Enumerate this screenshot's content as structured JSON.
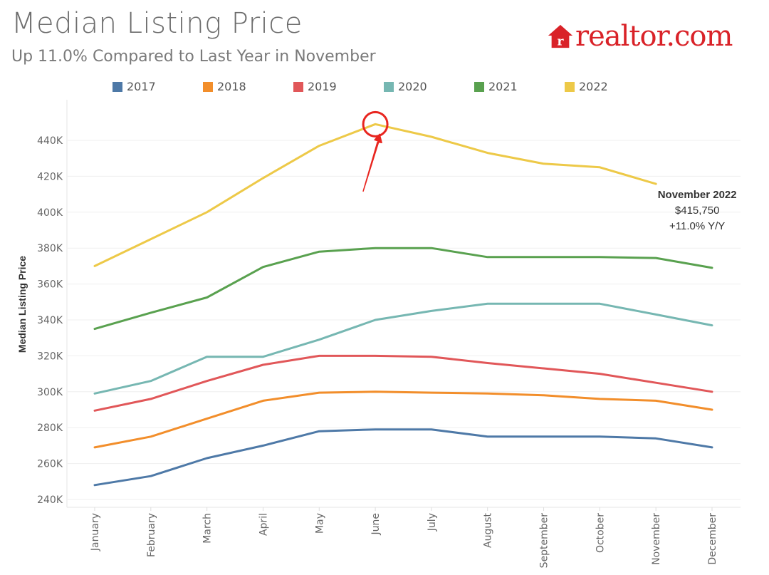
{
  "header": {
    "title": "Median Listing Price",
    "subtitle": "Up 11.0% Compared to Last Year in November",
    "brand": "realtor.com",
    "brand_color": "#d92228"
  },
  "chart_data": {
    "type": "line",
    "title": "Median Listing Price",
    "subtitle": "Up 11.0% Compared to Last Year in November",
    "ylabel": "Median Listing Price",
    "xlabel": "",
    "ylim": [
      238000,
      455000
    ],
    "yticks": [
      240000,
      260000,
      280000,
      300000,
      320000,
      340000,
      360000,
      380000,
      400000,
      420000,
      440000
    ],
    "ytick_labels": [
      "240K",
      "260K",
      "280K",
      "300K",
      "320K",
      "340K",
      "360K",
      "380K",
      "400K",
      "420K",
      "440K"
    ],
    "grid": true,
    "legend_position": "top",
    "categories": [
      "January",
      "February",
      "March",
      "April",
      "May",
      "June",
      "July",
      "August",
      "September",
      "October",
      "November",
      "December"
    ],
    "series": [
      {
        "name": "2017",
        "color": "#4e79a7",
        "values": [
          248000,
          253000,
          263000,
          270000,
          278000,
          279000,
          279000,
          275000,
          275000,
          275000,
          274000,
          269000
        ]
      },
      {
        "name": "2018",
        "color": "#f28e2b",
        "values": [
          269000,
          275000,
          285000,
          295000,
          299500,
          300000,
          299500,
          299000,
          298000,
          296000,
          295000,
          290000
        ]
      },
      {
        "name": "2019",
        "color": "#e15759",
        "values": [
          289500,
          296000,
          306000,
          315000,
          320000,
          320000,
          319500,
          316000,
          313000,
          310000,
          305000,
          300000
        ]
      },
      {
        "name": "2020",
        "color": "#76b7b2",
        "values": [
          299000,
          306000,
          319500,
          319500,
          329000,
          340000,
          345000,
          349000,
          349000,
          349000,
          343000,
          337000
        ]
      },
      {
        "name": "2021",
        "color": "#59a14f",
        "values": [
          335000,
          344000,
          352500,
          369500,
          378000,
          380000,
          380000,
          375000,
          375000,
          375000,
          374500,
          369000
        ]
      },
      {
        "name": "2022",
        "color": "#edc948",
        "values": [
          370000,
          385000,
          400000,
          419000,
          437000,
          449000,
          442000,
          433000,
          427000,
          425000,
          415750,
          null
        ]
      }
    ],
    "annotation": {
      "series": "2022",
      "category": "November",
      "lines": [
        "November 2022",
        "$415,750",
        "+11.0% Y/Y"
      ]
    },
    "highlight": {
      "series": "2022",
      "category": "June",
      "marker": "circle-with-arrow",
      "color": "#e8251f"
    }
  }
}
